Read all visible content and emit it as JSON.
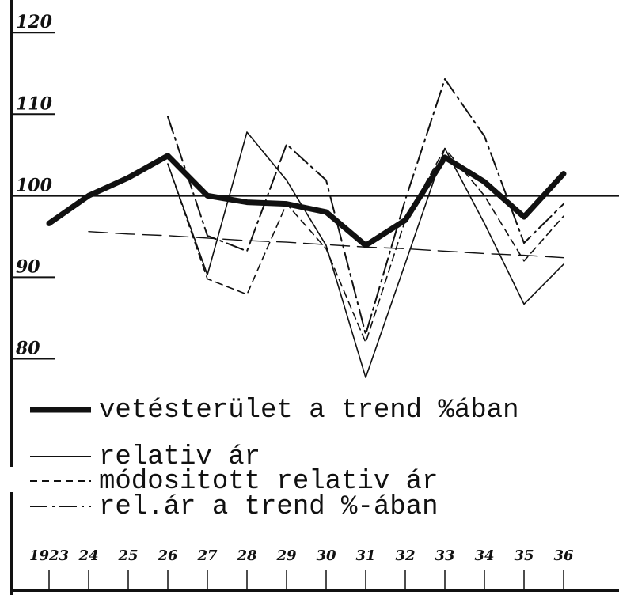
{
  "chart_data": {
    "type": "line",
    "categories": [
      "1923",
      "24",
      "25",
      "26",
      "27",
      "28",
      "29",
      "30",
      "31",
      "32",
      "33",
      "34",
      "35",
      "36"
    ],
    "series": [
      {
        "name": "vetésterület a trend %ában",
        "color": "#111111",
        "style": "thick",
        "values": [
          96.6,
          100,
          102.2,
          104.9,
          100,
          99.2,
          99,
          98,
          93.9,
          97,
          104.7,
          101.7,
          97.4,
          102.7
        ]
      },
      {
        "name": "relativ ár",
        "color": "#111111",
        "style": "solid",
        "values": [
          null,
          null,
          null,
          103.9,
          90.3,
          107.8,
          101.9,
          93.9,
          77.7,
          91.7,
          105.8,
          96.6,
          86.7,
          91.6
        ]
      },
      {
        "name": "módositott relativ ár",
        "color": "#111111",
        "style": "dashed",
        "values": [
          null,
          null,
          null,
          103.9,
          89.8,
          87.9,
          99,
          93.5,
          82,
          97,
          105.8,
          100,
          92,
          97.5
        ]
      },
      {
        "name": "rel.ár a trend %-ában",
        "color": "#111111",
        "style": "dashdot",
        "values": [
          null,
          null,
          null,
          109.7,
          95.1,
          93.2,
          106.3,
          101.9,
          83,
          99.5,
          114.3,
          107.3,
          94.2,
          99
        ]
      },
      {
        "color": "#111111",
        "style": "longdash",
        "values": [
          null,
          95.6,
          95.3,
          95.1,
          94.8,
          94.5,
          94.3,
          94.0,
          93.7,
          93.5,
          93.2,
          92.9,
          92.7,
          92.4
        ]
      }
    ],
    "ylim": [
      75,
      124
    ],
    "yticks": [
      80,
      90,
      100,
      110,
      120
    ],
    "hline": 100,
    "grid": false,
    "legend": "bottom"
  }
}
